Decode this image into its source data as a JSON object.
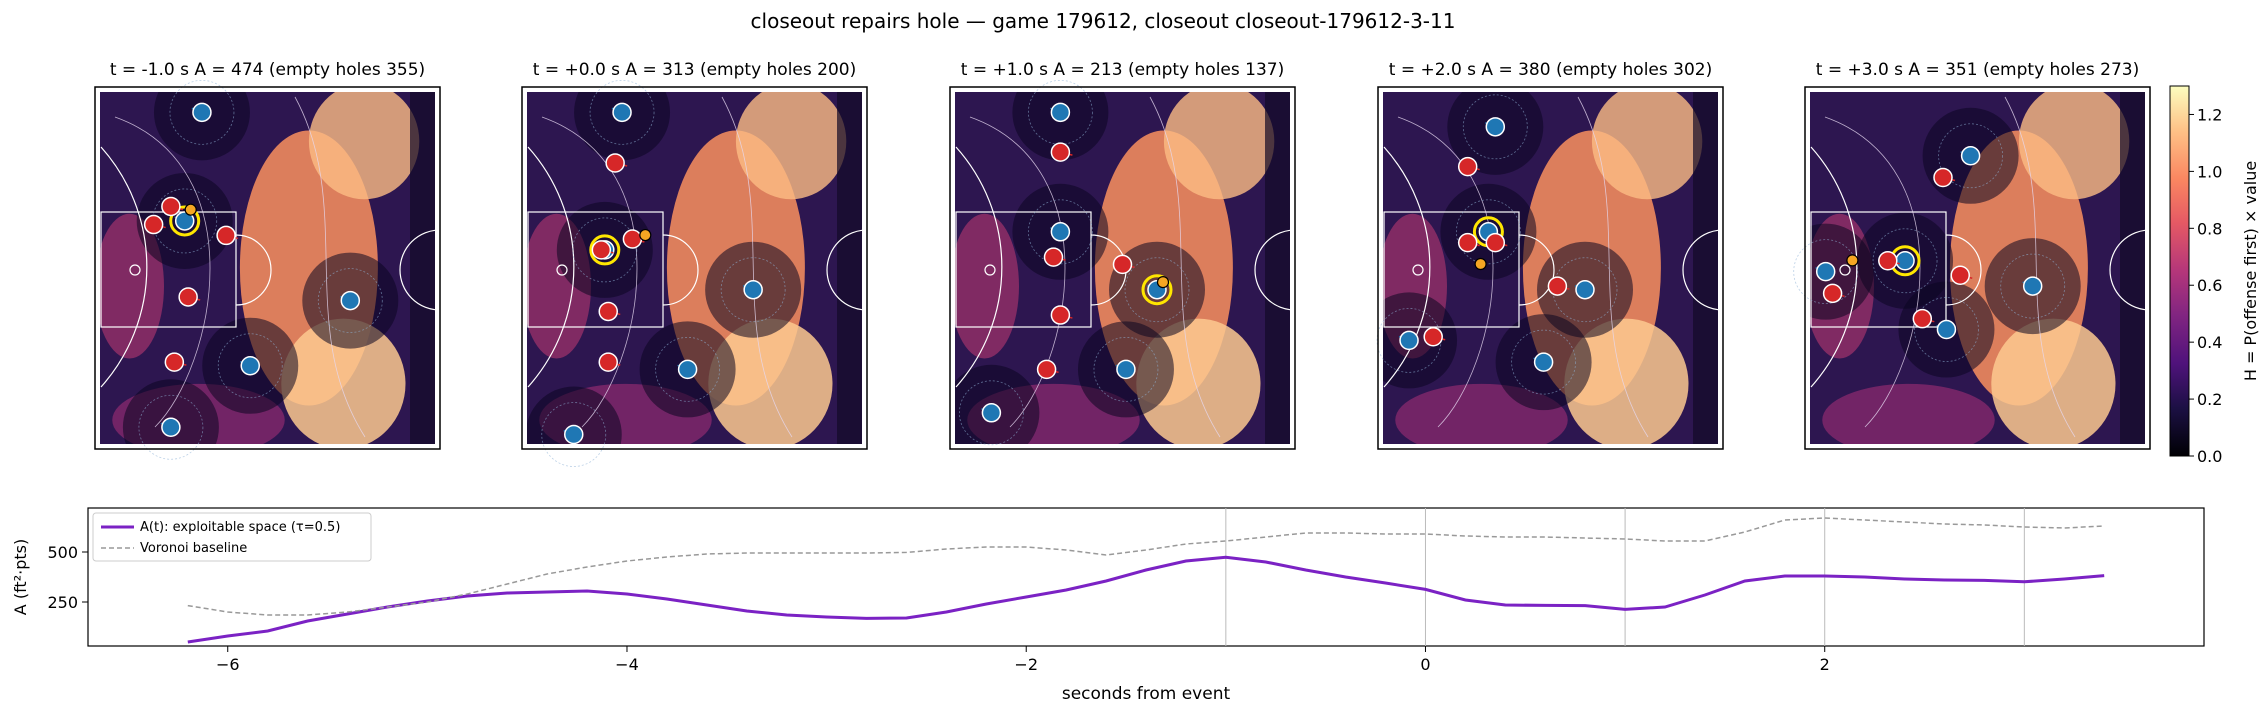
{
  "figure_title": "closeout repairs hole — game 179612, closeout closeout-179612-3-11",
  "panels": [
    {
      "title": "t = -1.0 s   A = 474  (empty holes 355)",
      "t": -1.0,
      "A": 474,
      "empty_holes": 355,
      "offense": [
        [
          0.22,
          0.33
        ],
        [
          0.17,
          0.38
        ],
        [
          0.38,
          0.41
        ],
        [
          0.27,
          0.58
        ],
        [
          0.23,
          0.76
        ]
      ],
      "defense": [
        [
          0.31,
          0.07
        ],
        [
          0.26,
          0.37
        ],
        [
          0.74,
          0.59
        ],
        [
          0.45,
          0.77
        ],
        [
          0.22,
          0.94
        ]
      ],
      "ball": [
        0.26,
        0.35
      ],
      "closeout_player": [
        0.26,
        0.37
      ]
    },
    {
      "title": "t = +0.0 s   A = 313  (empty holes 200)",
      "t": 0.0,
      "A": 313,
      "empty_holes": 200,
      "offense": [
        [
          0.27,
          0.21
        ],
        [
          0.23,
          0.45
        ],
        [
          0.32,
          0.42
        ],
        [
          0.25,
          0.62
        ],
        [
          0.25,
          0.76
        ]
      ],
      "defense": [
        [
          0.29,
          0.07
        ],
        [
          0.24,
          0.45
        ],
        [
          0.67,
          0.56
        ],
        [
          0.48,
          0.78
        ],
        [
          0.15,
          0.96
        ]
      ],
      "ball": [
        0.34,
        0.42
      ],
      "closeout_player": [
        0.24,
        0.45
      ]
    },
    {
      "title": "t = +1.0 s   A = 213  (empty holes 137)",
      "t": 1.0,
      "A": 213,
      "empty_holes": 137,
      "offense": [
        [
          0.32,
          0.18
        ],
        [
          0.3,
          0.47
        ],
        [
          0.5,
          0.49
        ],
        [
          0.32,
          0.63
        ],
        [
          0.28,
          0.78
        ]
      ],
      "defense": [
        [
          0.32,
          0.07
        ],
        [
          0.32,
          0.4
        ],
        [
          0.6,
          0.56
        ],
        [
          0.51,
          0.78
        ],
        [
          0.12,
          0.9
        ]
      ],
      "ball": [
        0.6,
        0.55
      ],
      "closeout_player": [
        0.6,
        0.56
      ]
    },
    {
      "title": "t = +2.0 s   A = 380  (empty holes 302)",
      "t": 2.0,
      "A": 380,
      "empty_holes": 302,
      "offense": [
        [
          0.26,
          0.22
        ],
        [
          0.26,
          0.43
        ],
        [
          0.34,
          0.43
        ],
        [
          0.52,
          0.55
        ],
        [
          0.16,
          0.69
        ]
      ],
      "defense": [
        [
          0.34,
          0.11
        ],
        [
          0.32,
          0.4
        ],
        [
          0.6,
          0.56
        ],
        [
          0.48,
          0.76
        ],
        [
          0.09,
          0.7
        ]
      ],
      "ball": [
        0.28,
        0.5
      ],
      "closeout_player": [
        0.32,
        0.4
      ]
    },
    {
      "title": "t = +3.0 s   A = 351  (empty holes 273)",
      "t": 3.0,
      "A": 351,
      "empty_holes": 273,
      "offense": [
        [
          0.4,
          0.25
        ],
        [
          0.24,
          0.48
        ],
        [
          0.45,
          0.52
        ],
        [
          0.34,
          0.64
        ],
        [
          0.08,
          0.57
        ]
      ],
      "defense": [
        [
          0.48,
          0.19
        ],
        [
          0.29,
          0.48
        ],
        [
          0.66,
          0.55
        ],
        [
          0.41,
          0.67
        ],
        [
          0.06,
          0.51
        ]
      ],
      "ball": [
        0.12,
        0.49
      ],
      "closeout_player": [
        0.29,
        0.48
      ]
    }
  ],
  "colorbar": {
    "label": "H = P(offense first) × value",
    "min": 0.0,
    "max": 1.3,
    "ticks": [
      "0.0",
      "0.2",
      "0.4",
      "0.6",
      "0.8",
      "1.0",
      "1.2"
    ]
  },
  "colors": {
    "offense": "#d62728",
    "defense": "#1f77b4",
    "ball": "#f5a623",
    "highlight": "#ffe600",
    "series_A": "#7b22c4",
    "series_baseline": "#999999"
  },
  "chart_data": {
    "type": "line",
    "xlabel": "seconds from event",
    "ylabel": "A (ft²·pts)",
    "xlim": [
      -6.7,
      3.9
    ],
    "ylim": [
      30,
      720
    ],
    "xticks": [
      -6,
      -4,
      -2,
      0,
      2
    ],
    "yticks": [
      250,
      500
    ],
    "event_markers": [
      -1,
      0,
      1,
      2,
      3
    ],
    "legend_position": "upper left",
    "series": [
      {
        "name": "A(t): exploitable space (τ=0.5)",
        "style": "solid",
        "x": [
          -6.2,
          -6.0,
          -5.8,
          -5.6,
          -5.4,
          -5.2,
          -5.0,
          -4.8,
          -4.6,
          -4.4,
          -4.2,
          -4.0,
          -3.8,
          -3.6,
          -3.4,
          -3.2,
          -3.0,
          -2.8,
          -2.6,
          -2.4,
          -2.2,
          -2.0,
          -1.8,
          -1.6,
          -1.4,
          -1.2,
          -1.0,
          -0.8,
          -0.6,
          -0.4,
          -0.2,
          0.0,
          0.2,
          0.4,
          0.6,
          0.8,
          1.0,
          1.2,
          1.4,
          1.6,
          1.8,
          2.0,
          2.2,
          2.4,
          2.6,
          2.8,
          3.0,
          3.2,
          3.4
        ],
        "values": [
          50,
          80,
          105,
          155,
          190,
          225,
          255,
          280,
          295,
          300,
          305,
          290,
          265,
          235,
          205,
          185,
          175,
          168,
          170,
          200,
          240,
          275,
          310,
          355,
          410,
          455,
          474,
          450,
          410,
          375,
          345,
          313,
          260,
          235,
          233,
          232,
          213,
          225,
          285,
          355,
          380,
          380,
          375,
          365,
          360,
          358,
          351,
          365,
          382
        ]
      },
      {
        "name": "Voronoi baseline",
        "style": "dashed",
        "x": [
          -6.2,
          -6.0,
          -5.8,
          -5.6,
          -5.4,
          -5.2,
          -5.0,
          -4.8,
          -4.6,
          -4.4,
          -4.2,
          -4.0,
          -3.8,
          -3.6,
          -3.4,
          -3.2,
          -3.0,
          -2.8,
          -2.6,
          -2.4,
          -2.2,
          -2.0,
          -1.8,
          -1.6,
          -1.4,
          -1.2,
          -1.0,
          -0.8,
          -0.6,
          -0.4,
          -0.2,
          0.0,
          0.2,
          0.4,
          0.6,
          0.8,
          1.0,
          1.2,
          1.4,
          1.6,
          1.8,
          2.0,
          2.2,
          2.4,
          2.6,
          2.8,
          3.0,
          3.2,
          3.4
        ],
        "values": [
          232,
          200,
          185,
          185,
          200,
          225,
          250,
          290,
          340,
          390,
          425,
          455,
          475,
          490,
          495,
          495,
          495,
          495,
          498,
          515,
          525,
          525,
          510,
          485,
          510,
          540,
          555,
          575,
          595,
          595,
          590,
          590,
          580,
          575,
          575,
          570,
          565,
          555,
          555,
          600,
          660,
          670,
          660,
          650,
          640,
          635,
          625,
          620,
          630
        ]
      }
    ]
  }
}
